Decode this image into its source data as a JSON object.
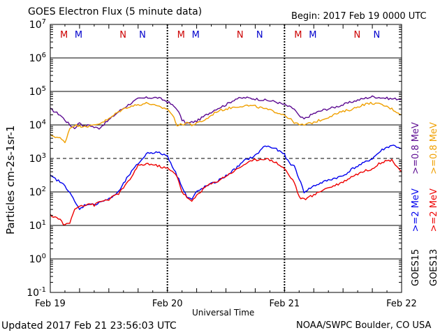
{
  "title": "GOES Electron Flux (5 minute data)",
  "begin": "Begin: 2017 Feb 19 0000 UTC",
  "updated": "Updated 2017 Feb 21 23:56:03 UTC",
  "credit": "NOAA/SWPC Boulder, CO USA",
  "chart_data": {
    "type": "line",
    "title": "GOES Electron Flux (5 minute data)",
    "xlabel": "Universal Time",
    "ylabel": "Particles cm-2s-1sr-1",
    "y_scale": "log",
    "ylim": [
      0.1,
      10000000
    ],
    "xlim": [
      0,
      72
    ],
    "x_unit": "hours since 2017 Feb 19 0000 UTC",
    "x_ticks": [
      {
        "value": 0,
        "label": "Feb 19"
      },
      {
        "value": 24,
        "label": "Feb 20"
      },
      {
        "value": 48,
        "label": "Feb 21"
      },
      {
        "value": 72,
        "label": "Feb 22"
      }
    ],
    "y_ticks": [
      {
        "value": 0.1,
        "base": "10",
        "exp": "-1"
      },
      {
        "value": 1,
        "base": "10",
        "exp": "0"
      },
      {
        "value": 10,
        "base": "10",
        "exp": "1"
      },
      {
        "value": 100,
        "base": "10",
        "exp": "2"
      },
      {
        "value": 1000,
        "base": "10",
        "exp": "3"
      },
      {
        "value": 10000,
        "base": "10",
        "exp": "4"
      },
      {
        "value": 100000,
        "base": "10",
        "exp": "5"
      },
      {
        "value": 1000000,
        "base": "10",
        "exp": "6"
      },
      {
        "value": 10000000,
        "base": "10",
        "exp": "7"
      }
    ],
    "threshold": 1000,
    "markers": [
      {
        "x": 2.8,
        "label": "M",
        "color": "#cc0000"
      },
      {
        "x": 5.8,
        "label": "M",
        "color": "#0000cc"
      },
      {
        "x": 14.9,
        "label": "N",
        "color": "#cc0000"
      },
      {
        "x": 18.9,
        "label": "N",
        "color": "#0000cc"
      },
      {
        "x": 26.8,
        "label": "M",
        "color": "#cc0000"
      },
      {
        "x": 29.8,
        "label": "M",
        "color": "#0000cc"
      },
      {
        "x": 38.9,
        "label": "N",
        "color": "#cc0000"
      },
      {
        "x": 42.9,
        "label": "N",
        "color": "#0000cc"
      },
      {
        "x": 50.8,
        "label": "M",
        "color": "#cc0000"
      },
      {
        "x": 53.8,
        "label": "M",
        "color": "#0000cc"
      },
      {
        "x": 62.9,
        "label": "N",
        "color": "#cc0000"
      },
      {
        "x": 66.9,
        "label": "N",
        "color": "#0000cc"
      }
    ],
    "series": [
      {
        "name": ">=0.8 MeV",
        "satellite": "GOES15",
        "color": "#5c0a91",
        "x": [
          0,
          2,
          4,
          5,
          6,
          7,
          8,
          9,
          10,
          12,
          14,
          16,
          18,
          20,
          22,
          24,
          26,
          27,
          28,
          29,
          30,
          32,
          34,
          36,
          38,
          40,
          42,
          44,
          46,
          48,
          50,
          51,
          52,
          54,
          56,
          58,
          60,
          62,
          64,
          66,
          68,
          70,
          72
        ],
        "y": [
          30000,
          20000,
          10000,
          8000,
          12000,
          9000,
          10000,
          8500,
          8000,
          14000,
          25000,
          40000,
          60000,
          65000,
          65000,
          50000,
          30000,
          14000,
          11000,
          12000,
          13000,
          20000,
          30000,
          40000,
          60000,
          65000,
          60000,
          55000,
          50000,
          40000,
          30000,
          18000,
          15000,
          22000,
          28000,
          33000,
          40000,
          50000,
          60000,
          70000,
          65000,
          60000,
          60000
        ]
      },
      {
        "name": ">=0.8 MeV",
        "satellite": "GOES13",
        "color": "#f0a000",
        "x": [
          0,
          2,
          3,
          4,
          5,
          6,
          7,
          8,
          9,
          10,
          12,
          14,
          16,
          18,
          20,
          22,
          24,
          25,
          26,
          27,
          28,
          29,
          30,
          32,
          34,
          36,
          38,
          40,
          42,
          44,
          46,
          48,
          50,
          51,
          52,
          54,
          56,
          58,
          60,
          62,
          64,
          66,
          68,
          70,
          72
        ],
        "y": [
          5000,
          4000,
          3000,
          8000,
          10000,
          9000,
          9500,
          9000,
          10000,
          11000,
          15000,
          25000,
          35000,
          40000,
          45000,
          35000,
          30000,
          20000,
          10000,
          10000,
          12000,
          10000,
          11000,
          15000,
          25000,
          30000,
          35000,
          38000,
          36000,
          30000,
          25000,
          20000,
          12000,
          10000,
          10000,
          12000,
          15000,
          20000,
          25000,
          30000,
          40000,
          45000,
          40000,
          30000,
          20000
        ]
      },
      {
        "name": ">=2 MeV",
        "satellite": "GOES15",
        "color": "#0000ee",
        "x": [
          0,
          2,
          3,
          4,
          5,
          6,
          7,
          8,
          9,
          10,
          12,
          14,
          16,
          18,
          20,
          22,
          24,
          25,
          26,
          27,
          28,
          29,
          30,
          32,
          34,
          36,
          38,
          40,
          42,
          44,
          46,
          48,
          49,
          50,
          51,
          52,
          54,
          56,
          58,
          60,
          62,
          64,
          66,
          68,
          70,
          72
        ],
        "y": [
          300,
          200,
          150,
          100,
          50,
          30,
          40,
          45,
          40,
          50,
          60,
          100,
          300,
          700,
          1500,
          1500,
          1200,
          600,
          300,
          150,
          70,
          60,
          100,
          150,
          200,
          300,
          500,
          900,
          1200,
          2400,
          2000,
          1300,
          700,
          600,
          250,
          100,
          150,
          200,
          250,
          300,
          500,
          700,
          1000,
          1800,
          2500,
          2000
        ]
      },
      {
        "name": ">=2 MeV",
        "satellite": "GOES13",
        "color": "#ee0000",
        "x": [
          0,
          1,
          2,
          3,
          4,
          5,
          6,
          7,
          8,
          9,
          10,
          12,
          14,
          16,
          18,
          20,
          22,
          24,
          25,
          26,
          27,
          28,
          29,
          30,
          32,
          34,
          36,
          38,
          40,
          42,
          44,
          46,
          48,
          49,
          50,
          51,
          52,
          54,
          56,
          58,
          60,
          62,
          64,
          66,
          68,
          70,
          72
        ],
        "y": [
          20,
          18,
          15,
          10,
          12,
          30,
          40,
          40,
          45,
          40,
          50,
          60,
          90,
          200,
          600,
          700,
          600,
          500,
          400,
          300,
          100,
          70,
          50,
          80,
          150,
          200,
          300,
          450,
          700,
          900,
          1000,
          800,
          500,
          300,
          200,
          70,
          60,
          80,
          120,
          150,
          200,
          300,
          400,
          500,
          800,
          900,
          400
        ]
      }
    ]
  }
}
